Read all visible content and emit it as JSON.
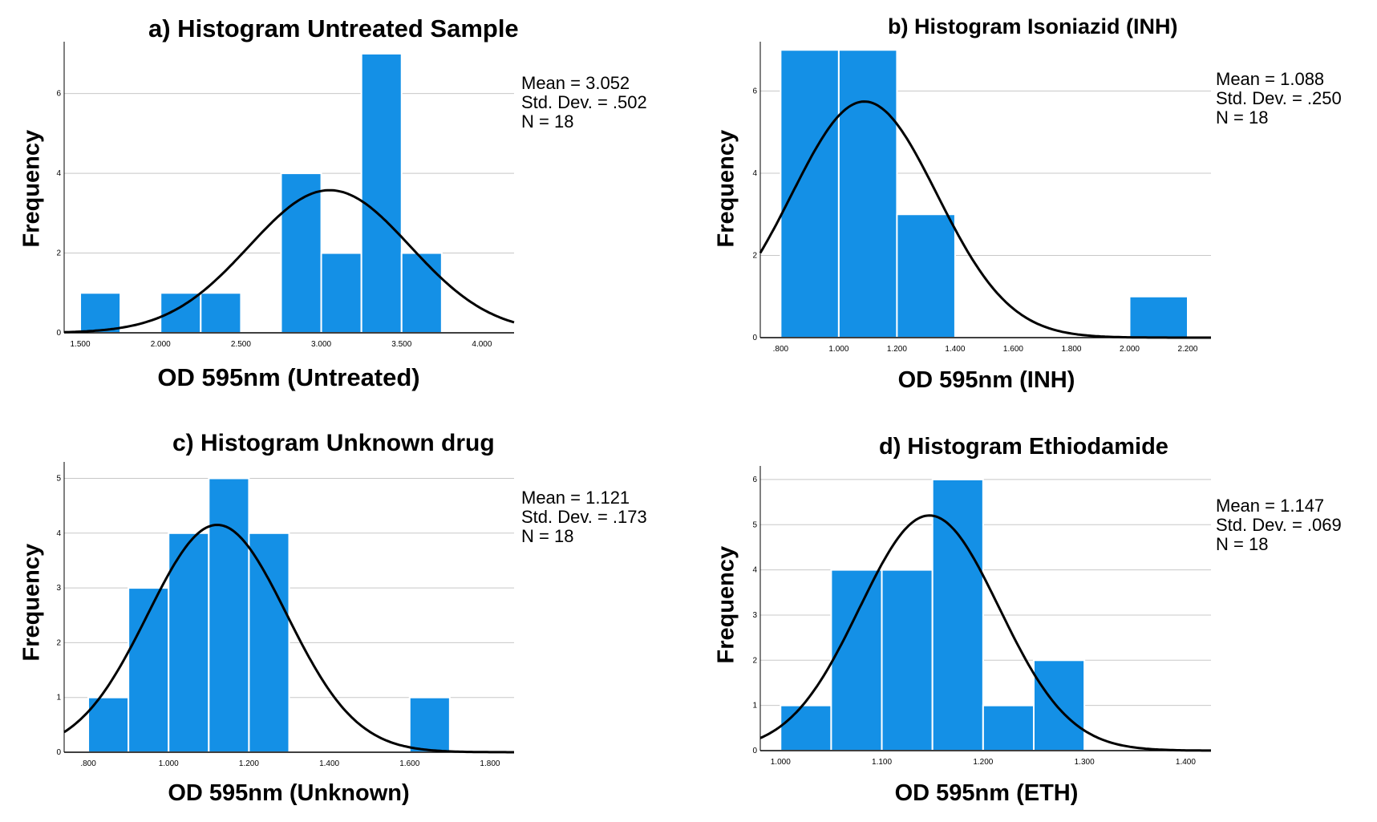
{
  "colors": {
    "bar": "#1490e6",
    "bar_edge": "#ffffff",
    "curve": "#000000",
    "grid": "#c8c8c8",
    "axis": "#000000"
  },
  "chart_data": [
    {
      "type": "bar",
      "title": "a) Histogram Untreated Sample",
      "xlabel": "OD 595nm (Untreated)",
      "ylabel": "Frequency",
      "xlim": [
        1.4,
        4.2
      ],
      "ylim": [
        0,
        7.3
      ],
      "xticks": [
        1.5,
        2.0,
        2.5,
        3.0,
        3.5,
        4.0
      ],
      "xtick_labels": [
        "1.500",
        "2.000",
        "2.500",
        "3.000",
        "3.500",
        "4.000"
      ],
      "yticks": [
        0,
        2,
        4,
        6
      ],
      "ytick_labels": [
        "0",
        "2",
        "4",
        "6"
      ],
      "bin_width": 0.25,
      "bins": [
        1.5,
        1.75,
        2.0,
        2.25,
        2.5,
        2.75,
        3.0,
        3.25,
        3.5
      ],
      "counts": [
        1,
        0,
        1,
        1,
        0,
        4,
        2,
        7,
        2
      ],
      "stats": {
        "mean_label": "Mean = 3.052",
        "sd_label": "Std. Dev. = .502",
        "n_label": "N = 18"
      },
      "normal_curve": {
        "mean": 3.052,
        "sd": 0.502,
        "n": 18
      },
      "grid": true
    },
    {
      "type": "bar",
      "title": "b) Histogram Isoniazid (INH)",
      "xlabel": "OD 595nm (INH)",
      "ylabel": "Frequency",
      "xlim": [
        0.73,
        2.28
      ],
      "ylim": [
        0,
        7.2
      ],
      "xticks": [
        0.8,
        1.0,
        1.2,
        1.4,
        1.6,
        1.8,
        2.0,
        2.2
      ],
      "xtick_labels": [
        ".800",
        "1.000",
        "1.200",
        "1.400",
        "1.600",
        "1.800",
        "2.000",
        "2.200"
      ],
      "yticks": [
        0,
        2,
        4,
        6
      ],
      "ytick_labels": [
        "0",
        "2",
        "4",
        "6"
      ],
      "bin_width": 0.2,
      "bins": [
        0.8,
        1.0,
        1.2,
        1.4,
        1.6,
        1.8,
        2.0
      ],
      "counts": [
        7,
        7,
        3,
        0,
        0,
        0,
        1
      ],
      "stats": {
        "mean_label": "Mean = 1.088",
        "sd_label": "Std. Dev. = .250",
        "n_label": "N = 18"
      },
      "normal_curve": {
        "mean": 1.088,
        "sd": 0.25,
        "n": 18
      },
      "grid": true
    },
    {
      "type": "bar",
      "title": "c) Histogram Unknown drug",
      "xlabel": "OD 595nm (Unknown)",
      "ylabel": "Frequency",
      "xlim": [
        0.74,
        1.86
      ],
      "ylim": [
        0,
        5.3
      ],
      "xticks": [
        0.8,
        1.0,
        1.2,
        1.4,
        1.6,
        1.8
      ],
      "xtick_labels": [
        ".800",
        "1.000",
        "1.200",
        "1.400",
        "1.600",
        "1.800"
      ],
      "yticks": [
        0,
        1,
        2,
        3,
        4,
        5
      ],
      "ytick_labels": [
        "0",
        "1",
        "2",
        "3",
        "4",
        "5"
      ],
      "bin_width": 0.1,
      "bins": [
        0.8,
        0.9,
        1.0,
        1.1,
        1.2,
        1.3,
        1.4,
        1.5,
        1.6
      ],
      "counts": [
        1,
        3,
        4,
        5,
        4,
        0,
        0,
        0,
        1
      ],
      "stats": {
        "mean_label": "Mean = 1.121",
        "sd_label": "Std. Dev. = .173",
        "n_label": "N = 18"
      },
      "normal_curve": {
        "mean": 1.121,
        "sd": 0.173,
        "n": 18
      },
      "grid": true
    },
    {
      "type": "bar",
      "title": "d) Histogram Ethiodamide",
      "xlabel": "OD 595nm (ETH)",
      "ylabel": "Frequency",
      "xlim": [
        0.98,
        1.425
      ],
      "ylim": [
        0,
        6.3
      ],
      "xticks": [
        1.0,
        1.1,
        1.2,
        1.3,
        1.4
      ],
      "xtick_labels": [
        "1.000",
        "1.100",
        "1.200",
        "1.300",
        "1.400"
      ],
      "yticks": [
        0,
        1,
        2,
        3,
        4,
        5,
        6
      ],
      "ytick_labels": [
        "0",
        "1",
        "2",
        "3",
        "4",
        "5",
        "6"
      ],
      "bin_width": 0.05,
      "bins": [
        1.0,
        1.05,
        1.1,
        1.15,
        1.2,
        1.25
      ],
      "counts": [
        1,
        4,
        4,
        6,
        1,
        2
      ],
      "stats": {
        "mean_label": "Mean = 1.147",
        "sd_label": "Std. Dev. = .069",
        "n_label": "N = 18"
      },
      "normal_curve": {
        "mean": 1.147,
        "sd": 0.069,
        "n": 18
      },
      "grid": true
    }
  ]
}
